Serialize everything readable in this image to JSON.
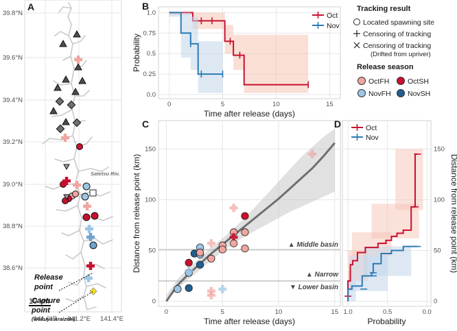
{
  "colors": {
    "oct": "#c8102e",
    "nov": "#2b7bb3",
    "oct_fill": "#f6c4b5",
    "nov_fill": "#c3d5ea",
    "octFH": "#f0a6a0",
    "octSH": "#c8102e",
    "novFH": "#9dc6e6",
    "novSH": "#1f5f93",
    "gray": "#6f6f6f"
  },
  "panel_labels": {
    "a": "A",
    "b": "B",
    "c": "C",
    "d": "D"
  },
  "map": {
    "lat_labels": [
      "39.8°N",
      "39.6°N",
      "39.4°N",
      "39.2°N",
      "39.0°N",
      "38.8°N",
      "38.6°N"
    ],
    "lon_labels": [
      "141.0°E",
      "141.2°E",
      "141.4°E"
    ],
    "release_point": "Release\npoint",
    "capture_point": "Capture\npoint",
    "capture_sub": "(Wakuya Araizeki)",
    "river": "Satetsu Riv.",
    "scale": "10 km"
  },
  "legend": {
    "tracking_title": "Tracking result",
    "tracking_items": [
      "Located spawning site",
      "Censoring of tracking",
      "Censoring of tracking",
      "(Drifted from upriver)"
    ],
    "season_title": "Release season",
    "season_items": [
      "OctFH",
      "OctSH",
      "NovFH",
      "NovSH"
    ]
  },
  "chart_data": [
    {
      "type": "line",
      "panel": "B",
      "xlabel": "Time after release (days)",
      "ylabel": "Probability",
      "xlim": [
        -1,
        16
      ],
      "ylim": [
        -0.05,
        1.07
      ],
      "xticks": [
        0,
        5,
        10,
        15
      ],
      "yticks": [
        0.0,
        0.25,
        0.5,
        0.75,
        1.0
      ],
      "ytick_labels": [
        "0.0",
        "0.25",
        "0.5",
        "0.75",
        "1.0"
      ],
      "series": [
        {
          "name": "Oct",
          "steps": [
            [
              0,
              1.0
            ],
            [
              2.2,
              0.9
            ],
            [
              5.2,
              0.65
            ],
            [
              6.0,
              0.48
            ],
            [
              7.0,
              0.12
            ],
            [
              13,
              0.12
            ]
          ],
          "ci_lo": [
            0.97,
            0.8,
            0.5,
            0.3,
            0.02
          ],
          "ci_hi": [
            1.0,
            1.0,
            0.85,
            0.73,
            0.73
          ],
          "censor": [
            [
              3,
              0.9
            ],
            [
              4,
              0.9
            ],
            [
              5.7,
              0.65
            ],
            [
              6.6,
              0.48
            ],
            [
              13,
              0.12
            ]
          ]
        },
        {
          "name": "Nov",
          "steps": [
            [
              0,
              1.0
            ],
            [
              1.1,
              0.75
            ],
            [
              2.0,
              0.62
            ],
            [
              2.7,
              0.25
            ],
            [
              5,
              0.25
            ]
          ],
          "ci_lo": [
            0.95,
            0.45,
            0.3,
            0.02
          ],
          "ci_hi": [
            1.0,
            1.0,
            0.95,
            0.65
          ],
          "censor": [
            [
              2,
              0.62
            ],
            [
              3,
              0.25
            ],
            [
              5,
              0.25
            ]
          ]
        }
      ],
      "legend": [
        "Oct",
        "Nov"
      ]
    },
    {
      "type": "scatter",
      "panel": "C",
      "xlabel": "Time after release (days)",
      "ylabel": "Distance from release point (km)",
      "xlim": [
        -0.7,
        15.5
      ],
      "ylim": [
        -5,
        178
      ],
      "xticks": [
        0,
        5,
        10,
        15
      ],
      "yticks": [
        0,
        50,
        100,
        150
      ],
      "hlines": [
        {
          "y": 51,
          "label": "Middle basin"
        },
        {
          "y": 21,
          "label": "Narrow"
        },
        {
          "y": 20,
          "label": "Lower basin"
        }
      ],
      "fit": {
        "x": [
          0,
          1,
          2,
          3,
          4,
          5,
          6,
          7,
          8,
          9,
          10,
          11,
          12,
          13,
          14,
          15
        ],
        "y": [
          0,
          16,
          27,
          37,
          47,
          56,
          65,
          74,
          83,
          92,
          101,
          111,
          121,
          131,
          143,
          156
        ],
        "ci_lo": [
          0,
          12,
          22,
          31,
          40,
          49,
          57,
          64,
          70,
          76,
          82,
          88,
          93,
          98,
          103,
          108
        ],
        "ci_hi": [
          6,
          22,
          33,
          43,
          53,
          62,
          72,
          82,
          94,
          106,
          118,
          130,
          142,
          152,
          162,
          170
        ]
      },
      "points": [
        {
          "x": 1,
          "y": 12,
          "g": "novSH",
          "m": "circle"
        },
        {
          "x": 1,
          "y": 12,
          "g": "novFH",
          "m": "circle"
        },
        {
          "x": 2,
          "y": 28,
          "g": "novFH",
          "m": "circle"
        },
        {
          "x": 2,
          "y": 13,
          "g": "novSH",
          "m": "circle"
        },
        {
          "x": 2,
          "y": 38,
          "g": "octSH",
          "m": "circle"
        },
        {
          "x": 2,
          "y": 30,
          "g": "novFH",
          "m": "cross"
        },
        {
          "x": 2.5,
          "y": 47,
          "g": "novSH",
          "m": "circle"
        },
        {
          "x": 3,
          "y": 53,
          "g": "novFH",
          "m": "circle"
        },
        {
          "x": 3,
          "y": 46,
          "g": "novFH",
          "m": "circle"
        },
        {
          "x": 3,
          "y": 36,
          "g": "novSH",
          "m": "circle"
        },
        {
          "x": 3,
          "y": 48,
          "g": "octFH",
          "m": "circle"
        },
        {
          "x": 4,
          "y": 57,
          "g": "octFH",
          "m": "cross"
        },
        {
          "x": 4,
          "y": 42,
          "g": "octFH",
          "m": "circle"
        },
        {
          "x": 4,
          "y": 10,
          "g": "octFH",
          "m": "cross"
        },
        {
          "x": 4,
          "y": 6,
          "g": "octFH",
          "m": "cross"
        },
        {
          "x": 5,
          "y": 55,
          "g": "octFH",
          "m": "circle"
        },
        {
          "x": 5,
          "y": 51,
          "g": "octFH",
          "m": "circle"
        },
        {
          "x": 5,
          "y": 12,
          "g": "novFH",
          "m": "cross"
        },
        {
          "x": 6,
          "y": 92,
          "g": "octFH",
          "m": "cross"
        },
        {
          "x": 6,
          "y": 68,
          "g": "octFH",
          "m": "circle"
        },
        {
          "x": 6,
          "y": 63,
          "g": "octSH",
          "m": "cross"
        },
        {
          "x": 6,
          "y": 57,
          "g": "octFH",
          "m": "circle"
        },
        {
          "x": 7,
          "y": 84,
          "g": "octSH",
          "m": "circle"
        },
        {
          "x": 7,
          "y": 68,
          "g": "octFH",
          "m": "circle"
        },
        {
          "x": 7,
          "y": 52,
          "g": "octFH",
          "m": "circle"
        },
        {
          "x": 13,
          "y": 145,
          "g": "octFH",
          "m": "cross"
        }
      ]
    },
    {
      "type": "line",
      "panel": "D",
      "xlabel": "Probability",
      "ylabel": "Distance from release point (km)",
      "xlim": [
        1.07,
        -0.05
      ],
      "ylim": [
        -5,
        178
      ],
      "xticks": [
        1.0,
        0.5,
        0.0
      ],
      "xtick_labels": [
        "1.0",
        "0.5",
        "0.0"
      ],
      "yticks": [
        0,
        50,
        100,
        150
      ],
      "series": [
        {
          "name": "Oct",
          "steps": [
            [
              1.0,
              0
            ],
            [
              1.0,
              5
            ],
            [
              0.97,
              20
            ],
            [
              0.94,
              36
            ],
            [
              0.88,
              40
            ],
            [
              0.78,
              48
            ],
            [
              0.62,
              53
            ],
            [
              0.52,
              57
            ],
            [
              0.45,
              60
            ],
            [
              0.38,
              64
            ],
            [
              0.3,
              67
            ],
            [
              0.2,
              70
            ],
            [
              0.15,
              93
            ],
            [
              0.12,
              145
            ]
          ],
          "censor": [
            [
              1.0,
              5
            ],
            [
              0.55,
              57
            ],
            [
              0.15,
              93
            ],
            [
              0.12,
              145
            ]
          ]
        },
        {
          "name": "Nov",
          "steps": [
            [
              1.0,
              0
            ],
            [
              1.0,
              5
            ],
            [
              0.95,
              12
            ],
            [
              0.82,
              15
            ],
            [
              0.7,
              25
            ],
            [
              0.68,
              28
            ],
            [
              0.58,
              37
            ],
            [
              0.45,
              47
            ],
            [
              0.3,
              50
            ],
            [
              0.12,
              54
            ]
          ],
          "censor": [
            [
              0.8,
              12
            ],
            [
              0.68,
              25
            ],
            [
              0.68,
              28
            ],
            [
              0.12,
              54
            ]
          ]
        }
      ],
      "legend": [
        "Oct",
        "Nov"
      ]
    }
  ]
}
